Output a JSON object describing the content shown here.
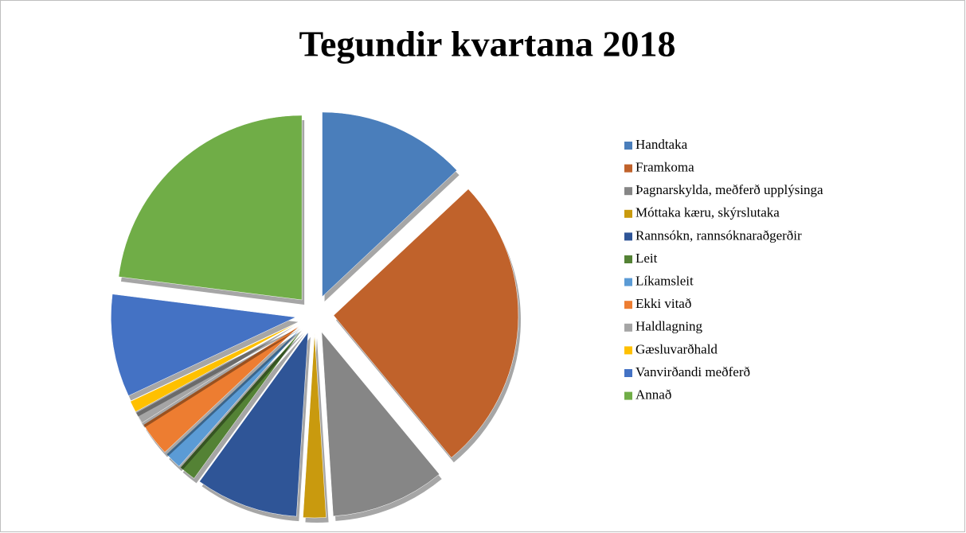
{
  "chart_data": {
    "type": "pie",
    "title": "Tegundir kvartana 2018",
    "categories": [
      "Handtaka",
      "Framkoma",
      "Þagnarskylda, meðferð upplýsinga",
      "Móttaka kæru, skýrslutaka",
      "Rannsókn, rannsóknaraðgerðir",
      "Leit",
      "Líkamsleit",
      "Ekki vitað",
      "Haldlagning",
      "Gæsluvarðhald",
      "Vanvirðandi meðferð",
      "Annað"
    ],
    "values": [
      13,
      26,
      10,
      2,
      9,
      1.5,
      1.5,
      3,
      1,
      1,
      9,
      23
    ],
    "colors": [
      "#4a7ebb",
      "#c0622b",
      "#868686",
      "#c99a0e",
      "#2f5597",
      "#548235",
      "#5b9bd5",
      "#ed7d31",
      "#a5a5a5",
      "#ffc000",
      "#4472c4",
      "#70ad47"
    ],
    "legend": "right"
  }
}
